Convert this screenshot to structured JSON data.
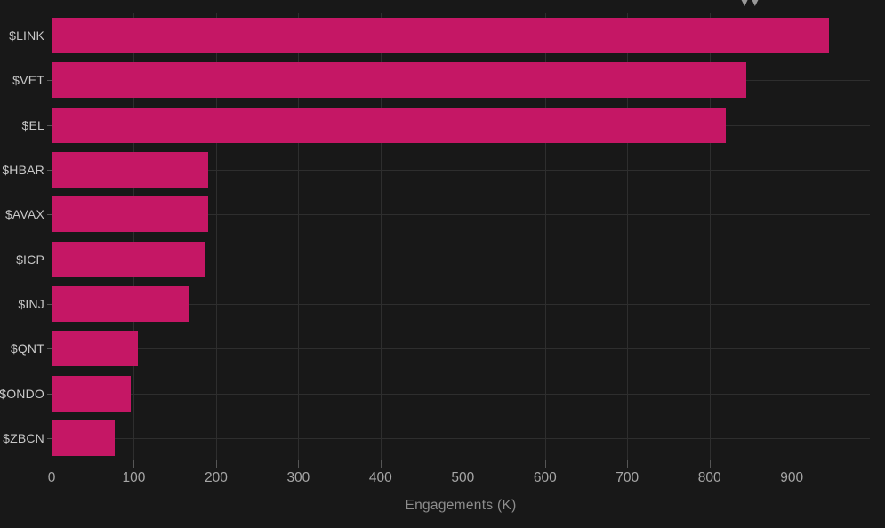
{
  "chart_data": {
    "type": "bar",
    "orientation": "horizontal",
    "title": "",
    "xlabel": "Engagements (K)",
    "ylabel": "",
    "categories": [
      "$LINK",
      "$VET",
      "$EL",
      "$HBAR",
      "$AVAX",
      "$ICP",
      "$INJ",
      "$QNT",
      "$ONDO",
      "$ZBCN"
    ],
    "values": [
      945,
      845,
      820,
      190,
      190,
      186,
      168,
      105,
      96,
      77
    ],
    "xlim": [
      0,
      995
    ],
    "x_ticks": [
      0,
      100,
      200,
      300,
      400,
      500,
      600,
      700,
      800,
      900
    ],
    "grid": "horizontal-at-category-centers and vertical-at-ticks",
    "legend": "none"
  },
  "colors": {
    "background": "#181818",
    "bar": "#c51765",
    "gridline": "#2e2e2e",
    "tick_mark": "#565656",
    "category_label": "#c8c8c8",
    "tick_label": "#a6a6a6",
    "axis_title": "#8d8d8d",
    "corner_icon": "#999999"
  },
  "icons": {
    "corner_icon": "collapse-arrows-icon (partially clipped at top edge)"
  }
}
